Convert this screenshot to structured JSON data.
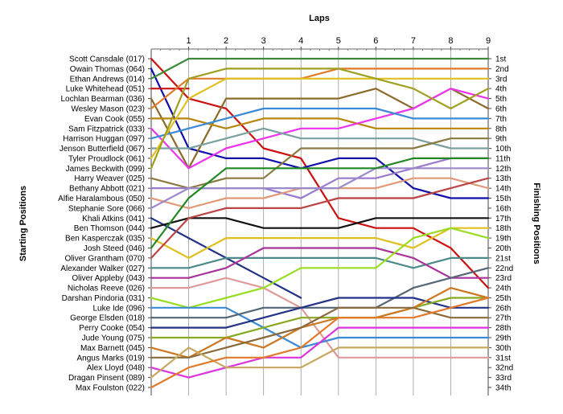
{
  "chart_data": {
    "type": "line",
    "title": "Laps",
    "ylabel_left": "Starting Positions",
    "ylabel_right": "Finishing Positions",
    "x": [
      0,
      1,
      2,
      3,
      4,
      5,
      6,
      7,
      8,
      9
    ],
    "x_tick_labels": [
      "1",
      "2",
      "3",
      "4",
      "5",
      "6",
      "7",
      "8",
      "9"
    ],
    "ylim": [
      1,
      34
    ],
    "start_labels": [
      "Scott Cansdale (017)",
      "Owain Thomas (064)",
      "Ethan Andrews (014)",
      "Luke Whitehead (051)",
      "Lochlan Bearman (036)",
      "Wesley Mason (023)",
      "Evan Cook (055)",
      "Sam Fitzpatrick (033)",
      "Harrison Huggan (097)",
      "Jenson Butterfield (067)",
      "Tyler Proudlock (061)",
      "James Beckwith (099)",
      "Harry Weaver (025)",
      "Bethany Abbott (021)",
      "Alfie Haralambous (050)",
      "Stephanie Sore (066)",
      "Khali Atkins (041)",
      "Ben Thomson (044)",
      "Ben Kasperczak (035)",
      "Josh Steed (046)",
      "Oliver Grantham (070)",
      "Alexander Walker (027)",
      "Oliver Appleby (043)",
      "Nicholas Reeve (026)",
      "Darshan Pindoria (031)",
      "Luke Ide (096)",
      "George Elsden (018)",
      "Perry Cooke (054)",
      "Jude Young (075)",
      "Max Barnett (045)",
      "Angus Marks (019)",
      "Alex Lloyd (048)",
      "Dragan Pinsent (089)",
      "Max Foulston (022)"
    ],
    "finish_labels": [
      "1st",
      "2nd",
      "3rd",
      "4th",
      "5th",
      "6th",
      "7th",
      "8th",
      "9th",
      "10th",
      "11th",
      "12th",
      "13th",
      "14th",
      "15th",
      "16th",
      "17th",
      "18th",
      "19th",
      "20th",
      "21st",
      "22nd",
      "23rd",
      "24th",
      "25th",
      "26th",
      "27th",
      "28th",
      "29th",
      "30th",
      "31st",
      "32nd",
      "33rd",
      "34th"
    ],
    "series": [
      {
        "start": 1,
        "color": "#cc1111",
        "values": [
          1,
          5,
          6,
          10,
          11,
          17,
          18,
          18,
          20,
          24
        ]
      },
      {
        "start": 2,
        "color": "#1111aa",
        "values": [
          2,
          10,
          11,
          11,
          12,
          11,
          11,
          14,
          15,
          15
        ]
      },
      {
        "start": 3,
        "color": "#3a8a3a",
        "values": [
          3,
          1,
          1,
          1,
          1,
          1,
          1,
          1,
          1,
          1
        ]
      },
      {
        "start": 4,
        "color": "#cc1111",
        "values": [
          4,
          4,
          null,
          null,
          null,
          null,
          null,
          null,
          null,
          null
        ]
      },
      {
        "start": 5,
        "color": "#8b6a2a",
        "values": [
          5,
          12,
          5,
          5,
          5,
          5,
          4,
          6,
          4,
          6
        ]
      },
      {
        "start": 6,
        "color": "#e07a2a",
        "values": [
          6,
          3,
          3,
          3,
          3,
          2,
          2,
          2,
          2,
          2
        ]
      },
      {
        "start": 7,
        "color": "#b8860b",
        "values": [
          7,
          7,
          8,
          7,
          7,
          7,
          8,
          8,
          8,
          8
        ]
      },
      {
        "start": 8,
        "color": "#ee33ee",
        "values": [
          8,
          12,
          10,
          9,
          8,
          8,
          7,
          6,
          4,
          5
        ]
      },
      {
        "start": 9,
        "color": "#3a8ad6",
        "values": [
          9,
          8,
          7,
          6,
          6,
          6,
          6,
          7,
          7,
          7
        ]
      },
      {
        "start": 10,
        "color": "#7aa0a0",
        "values": [
          10,
          10,
          9,
          8,
          9,
          9,
          9,
          9,
          10,
          10
        ]
      },
      {
        "start": 11,
        "color": "#e0c020",
        "values": [
          11,
          5,
          3,
          3,
          3,
          3,
          3,
          3,
          3,
          3
        ]
      },
      {
        "start": 12,
        "color": "#a0a020",
        "values": [
          12,
          3,
          2,
          2,
          2,
          2,
          3,
          4,
          6,
          4
        ]
      },
      {
        "start": 13,
        "color": "#8b7a40",
        "values": [
          13,
          14,
          13,
          13,
          10,
          10,
          10,
          10,
          9,
          9
        ]
      },
      {
        "start": 14,
        "color": "#9a7acc",
        "values": [
          14,
          14,
          14,
          14,
          15,
          13,
          13,
          12,
          11,
          11
        ]
      },
      {
        "start": 15,
        "color": "#e09a7a",
        "values": [
          15,
          16,
          15,
          15,
          14,
          14,
          14,
          13,
          13,
          14
        ]
      },
      {
        "start": 16,
        "color": "#9a8acc",
        "values": [
          16,
          14,
          14,
          14,
          14,
          14,
          12,
          12,
          12,
          12
        ]
      },
      {
        "start": 17,
        "color": "#223388",
        "values": [
          17,
          19,
          21,
          23,
          25,
          null,
          null,
          null,
          null,
          null
        ]
      },
      {
        "start": 18,
        "color": "#111111",
        "values": [
          18,
          17,
          17,
          18,
          18,
          18,
          17,
          17,
          17,
          17
        ]
      },
      {
        "start": 19,
        "color": "#e0c020",
        "values": [
          19,
          21,
          19,
          19,
          19,
          19,
          19,
          20,
          18,
          18
        ]
      },
      {
        "start": 20,
        "color": "#228822",
        "values": [
          20,
          15,
          12,
          12,
          12,
          12,
          12,
          11,
          11,
          11
        ]
      },
      {
        "start": 21,
        "color": "#bb4444",
        "values": [
          21,
          17,
          16,
          16,
          16,
          15,
          15,
          15,
          14,
          13
        ]
      },
      {
        "start": 22,
        "color": "#4a8a8a",
        "values": [
          22,
          22,
          21,
          21,
          21,
          21,
          21,
          22,
          21,
          21
        ]
      },
      {
        "start": 23,
        "color": "#aa3399",
        "values": [
          23,
          23,
          22,
          20,
          20,
          20,
          20,
          21,
          23,
          23
        ]
      },
      {
        "start": 24,
        "color": "#e09a9a",
        "values": [
          24,
          24,
          23,
          24,
          26,
          31,
          31,
          31,
          31,
          31
        ]
      },
      {
        "start": 25,
        "color": "#99dd22",
        "values": [
          25,
          26,
          25,
          24,
          22,
          22,
          22,
          19,
          18,
          19
        ]
      },
      {
        "start": 26,
        "color": "#3a8ad6",
        "values": [
          26,
          26,
          26,
          28,
          30,
          29,
          29,
          29,
          29,
          29
        ]
      },
      {
        "start": 27,
        "color": "#556677",
        "values": [
          27,
          27,
          27,
          26,
          26,
          26,
          26,
          24,
          23,
          22
        ]
      },
      {
        "start": 28,
        "color": "#223388",
        "values": [
          28,
          28,
          28,
          27,
          26,
          25,
          25,
          25,
          26,
          26
        ]
      },
      {
        "start": 29,
        "color": "#88aa22",
        "values": [
          29,
          29,
          29,
          28,
          27,
          27,
          27,
          26,
          25,
          25
        ]
      },
      {
        "start": 30,
        "color": "#cc7722",
        "values": [
          30,
          31,
          29,
          30,
          28,
          27,
          27,
          26,
          24,
          25
        ]
      },
      {
        "start": 31,
        "color": "#8a6a3a",
        "values": [
          31,
          31,
          30,
          29,
          28,
          26,
          26,
          26,
          27,
          27
        ]
      },
      {
        "start": 32,
        "color": "#dd33dd",
        "values": [
          32,
          33,
          32,
          31,
          31,
          28,
          28,
          28,
          28,
          28
        ]
      },
      {
        "start": 33,
        "color": "#c8a860",
        "values": [
          33,
          30,
          32,
          32,
          32,
          30,
          30,
          30,
          30,
          30
        ]
      },
      {
        "start": 34,
        "color": "#e07a2a",
        "values": [
          34,
          32,
          31,
          31,
          30,
          27,
          27,
          27,
          26,
          25
        ]
      }
    ]
  }
}
